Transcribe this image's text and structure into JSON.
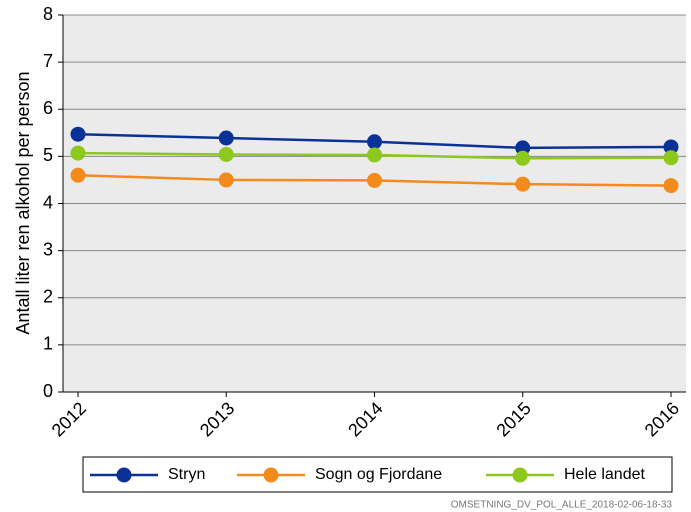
{
  "chart_data": {
    "type": "line",
    "y_label": "Antall liter ren alkohol per person",
    "categories": [
      "2012",
      "2013",
      "2014",
      "2015",
      "2016"
    ],
    "series": [
      {
        "name": "Stryn",
        "color": "#0a3296",
        "values": [
          5.47,
          5.39,
          5.31,
          5.18,
          5.2
        ]
      },
      {
        "name": "Sogn og Fjordane",
        "color": "#f28a1c",
        "values": [
          4.6,
          4.5,
          4.49,
          4.41,
          4.38
        ]
      },
      {
        "name": "Hele landet",
        "color": "#8cc81e",
        "values": [
          5.07,
          5.04,
          5.03,
          4.96,
          4.97
        ]
      }
    ],
    "ylim": [
      0,
      8
    ],
    "yticks": [
      0,
      1,
      2,
      3,
      4,
      5,
      6,
      7,
      8
    ],
    "grid": true,
    "footnote": "OMSETNING_DV_POL_ALLE_2018-02-06-18-33"
  }
}
